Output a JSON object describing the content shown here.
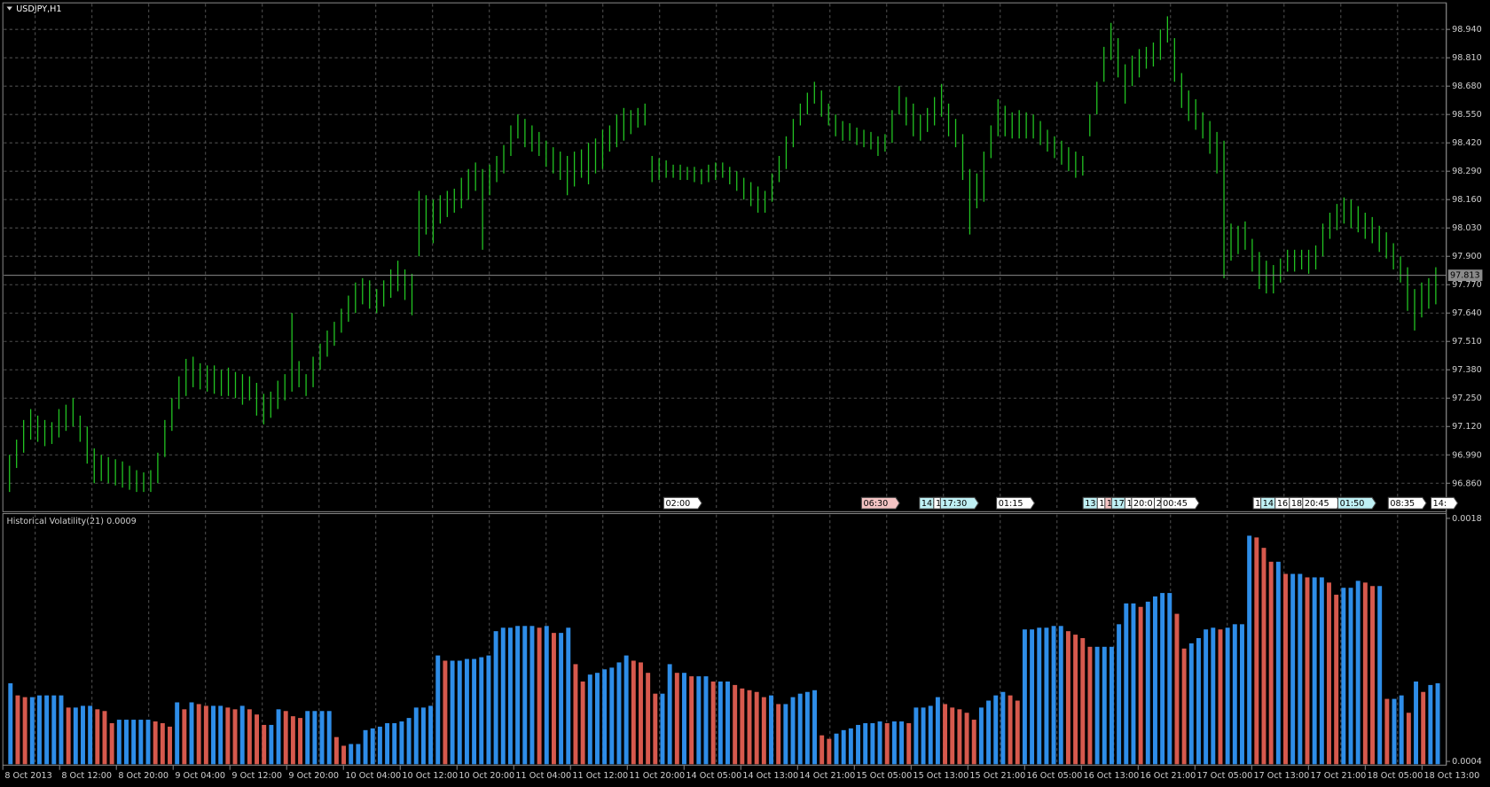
{
  "chart_data": [
    {
      "type": "range_bar",
      "title": "USDJPY,H1",
      "color": "#22c422",
      "grid": true,
      "ylim": [
        96.734,
        99.053
      ],
      "yticks": [
        {
          "value": 96.86,
          "label": "96.860"
        },
        {
          "value": 96.99,
          "label": "96.990"
        },
        {
          "value": 97.12,
          "label": "97.120"
        },
        {
          "value": 97.25,
          "label": "97.250"
        },
        {
          "value": 97.38,
          "label": "97.380"
        },
        {
          "value": 97.51,
          "label": "97.510"
        },
        {
          "value": 97.64,
          "label": "97.640"
        },
        {
          "value": 97.77,
          "label": "97.770"
        },
        {
          "value": 97.9,
          "label": "97.900"
        },
        {
          "value": 98.03,
          "label": "98.030"
        },
        {
          "value": 98.16,
          "label": "98.160"
        },
        {
          "value": 98.29,
          "label": "98.290"
        },
        {
          "value": 98.42,
          "label": "98.420"
        },
        {
          "value": 98.55,
          "label": "98.550"
        },
        {
          "value": 98.68,
          "label": "98.680"
        },
        {
          "value": 98.81,
          "label": "98.810"
        },
        {
          "value": 98.94,
          "label": "98.940"
        }
      ],
      "last_price": {
        "value": 97.813,
        "label": "97.813"
      },
      "low": [
        96.82,
        96.93,
        97.0,
        97.06,
        97.05,
        97.03,
        97.04,
        97.07,
        97.1,
        97.12,
        97.05,
        96.95,
        96.86,
        96.87,
        96.86,
        96.85,
        96.84,
        96.83,
        96.82,
        96.82,
        96.82,
        96.86,
        96.98,
        97.1,
        97.2,
        97.26,
        97.3,
        97.29,
        97.28,
        97.27,
        97.26,
        97.26,
        97.25,
        97.22,
        97.24,
        97.17,
        97.13,
        97.16,
        97.2,
        97.24,
        97.28,
        97.3,
        97.26,
        97.3,
        97.38,
        97.44,
        97.49,
        97.55,
        97.6,
        97.64,
        97.68,
        97.66,
        97.64,
        97.67,
        97.71,
        97.74,
        97.7,
        97.63,
        97.9,
        98.0,
        97.96,
        98.05,
        98.08,
        98.1,
        98.12,
        98.16,
        98.2,
        97.93,
        98.18,
        98.24,
        98.28,
        98.36,
        98.44,
        98.4,
        98.38,
        98.36,
        98.31,
        98.28,
        98.25,
        98.18,
        98.22,
        98.26,
        98.23,
        98.28,
        98.3,
        98.38,
        98.4,
        98.43,
        98.46,
        98.49,
        98.5,
        98.24,
        98.25,
        98.26,
        98.26,
        98.25,
        98.25,
        98.24,
        98.23,
        98.24,
        98.25,
        98.26,
        98.23,
        98.2,
        98.16,
        98.13,
        98.1,
        98.1,
        98.15,
        98.24,
        98.3,
        98.4,
        98.5,
        98.55,
        98.6,
        98.54,
        98.5,
        98.45,
        98.43,
        98.43,
        98.41,
        98.4,
        98.39,
        98.36,
        98.38,
        98.42,
        98.55,
        98.5,
        98.45,
        98.43,
        98.47,
        98.5,
        98.54,
        98.45,
        98.4,
        98.25,
        98.0,
        98.12,
        98.15,
        98.35,
        98.45,
        98.45,
        98.44,
        98.44,
        98.44,
        98.44,
        98.41,
        98.38,
        98.35,
        98.32,
        98.29,
        98.26,
        98.27,
        98.45,
        98.55,
        98.7,
        98.8,
        98.72,
        98.6,
        98.68,
        98.72,
        98.76,
        98.77,
        98.8,
        98.88,
        98.7,
        98.58,
        98.52,
        98.48,
        98.44,
        98.37,
        98.28,
        97.8,
        97.88,
        97.91,
        97.93,
        97.83,
        97.75,
        97.73,
        97.73,
        97.78,
        97.83,
        97.83,
        97.84,
        97.82,
        97.84,
        97.9,
        97.98,
        98.02,
        98.05,
        98.03,
        98.01,
        97.98,
        97.96,
        97.92,
        97.89,
        97.84,
        97.78,
        97.65,
        97.56,
        97.62,
        97.66,
        97.68
      ],
      "high": [
        96.99,
        97.06,
        97.15,
        97.2,
        97.17,
        97.15,
        97.14,
        97.2,
        97.22,
        97.25,
        97.17,
        97.12,
        97.02,
        96.99,
        96.98,
        96.97,
        96.96,
        96.94,
        96.92,
        96.91,
        96.92,
        97.0,
        97.15,
        97.25,
        97.35,
        97.43,
        97.44,
        97.41,
        97.4,
        97.4,
        97.38,
        97.39,
        97.37,
        97.36,
        97.35,
        97.32,
        97.27,
        97.28,
        97.33,
        97.36,
        97.64,
        97.42,
        97.36,
        97.44,
        97.5,
        97.56,
        97.6,
        97.66,
        97.72,
        97.78,
        97.8,
        97.79,
        97.75,
        97.79,
        97.84,
        97.88,
        97.84,
        97.82,
        98.2,
        98.18,
        98.16,
        98.18,
        98.2,
        98.21,
        98.26,
        98.3,
        98.33,
        98.3,
        98.32,
        98.36,
        98.41,
        98.5,
        98.55,
        98.53,
        98.5,
        98.47,
        98.43,
        98.4,
        98.38,
        98.36,
        98.38,
        98.39,
        98.42,
        98.44,
        98.48,
        98.5,
        98.55,
        98.58,
        98.57,
        98.58,
        98.6,
        98.36,
        98.35,
        98.34,
        98.32,
        98.32,
        98.31,
        98.31,
        98.3,
        98.32,
        98.33,
        98.33,
        98.31,
        98.29,
        98.26,
        98.24,
        98.22,
        98.2,
        98.28,
        98.36,
        98.45,
        98.53,
        98.6,
        98.65,
        98.7,
        98.66,
        98.6,
        98.55,
        98.52,
        98.51,
        98.49,
        98.48,
        98.47,
        98.45,
        98.46,
        98.57,
        98.68,
        98.63,
        98.6,
        98.55,
        98.58,
        98.63,
        98.69,
        98.6,
        98.53,
        98.46,
        98.3,
        98.28,
        98.38,
        98.5,
        98.62,
        98.59,
        98.56,
        98.57,
        98.56,
        98.55,
        98.52,
        98.48,
        98.45,
        98.43,
        98.4,
        98.38,
        98.36,
        98.55,
        98.7,
        98.86,
        98.97,
        98.9,
        98.78,
        98.82,
        98.85,
        98.86,
        98.88,
        98.94,
        99.0,
        98.9,
        98.74,
        98.66,
        98.62,
        98.56,
        98.52,
        98.47,
        98.43,
        98.05,
        98.04,
        98.06,
        97.98,
        97.92,
        97.88,
        97.86,
        97.89,
        97.93,
        97.93,
        97.93,
        97.93,
        97.95,
        98.05,
        98.1,
        98.14,
        98.17,
        98.16,
        98.13,
        98.1,
        98.08,
        98.04,
        98.01,
        97.96,
        97.9,
        97.85,
        97.75,
        97.78,
        97.8,
        97.85
      ],
      "events": [
        {
          "label": "02:00",
          "color": "#ffffff"
        },
        {
          "label": "06:30",
          "color": "#f4c4c4"
        },
        {
          "label": "14:",
          "color": "#bff0f4"
        },
        {
          "label": "1",
          "color": "#ffffff"
        },
        {
          "label": "17:30",
          "color": "#bff0f4"
        },
        {
          "label": "01:15",
          "color": "#ffffff"
        },
        {
          "label": "13:",
          "color": "#bff0f4"
        },
        {
          "label": "1",
          "color": "#ffffff"
        },
        {
          "label": "1",
          "color": "#f4c4c4"
        },
        {
          "label": "17:",
          "color": "#bff0f4"
        },
        {
          "label": "1",
          "color": "#ffffff"
        },
        {
          "label": "20:0",
          "color": "#ffffff"
        },
        {
          "label": "2",
          "color": "#ffffff"
        },
        {
          "label": "00:45",
          "color": "#ffffff"
        },
        {
          "label": "1",
          "color": "#ffffff"
        },
        {
          "label": "14:",
          "color": "#bff0f4"
        },
        {
          "label": "16:",
          "color": "#ffffff"
        },
        {
          "label": "18:",
          "color": "#ffffff"
        },
        {
          "label": "20:45",
          "color": "#ffffff"
        },
        {
          "label": "01:50",
          "color": "#bff0f4"
        },
        {
          "label": "08:35",
          "color": "#ffffff"
        },
        {
          "label": "14:",
          "color": "#ffffff"
        }
      ]
    },
    {
      "type": "bar",
      "title": "Historical Volatility(21) 0.0009",
      "up_color": "#2e8de8",
      "down_color": "#d6594d",
      "grid": true,
      "ylim": [
        0.0004,
        0.0018
      ],
      "yticks": [
        0.0018,
        0.0004
      ],
      "xtick_labels": [
        "8 Oct 2013",
        "8 Oct 12:00",
        "8 Oct 20:00",
        "9 Oct 04:00",
        "9 Oct 12:00",
        "9 Oct 20:00",
        "10 Oct 04:00",
        "10 Oct 12:00",
        "10 Oct 20:00",
        "11 Oct 04:00",
        "11 Oct 12:00",
        "11 Oct 20:00",
        "14 Oct 05:00",
        "14 Oct 13:00",
        "14 Oct 21:00",
        "15 Oct 05:00",
        "15 Oct 13:00",
        "15 Oct 21:00",
        "16 Oct 05:00",
        "16 Oct 13:00",
        "16 Oct 21:00",
        "17 Oct 05:00",
        "17 Oct 13:00",
        "17 Oct 21:00",
        "18 Oct 05:00",
        "18 Oct 13:00"
      ],
      "values": [
        0.00085,
        0.00078,
        0.00077,
        0.00077,
        0.00078,
        0.00078,
        0.00078,
        0.00078,
        0.00071,
        0.00071,
        0.00072,
        0.00072,
        0.0007,
        0.00069,
        0.00062,
        0.00064,
        0.00064,
        0.00064,
        0.00064,
        0.00064,
        0.00063,
        0.00062,
        0.0006,
        0.00074,
        0.0007,
        0.00074,
        0.00073,
        0.00072,
        0.00072,
        0.00072,
        0.00071,
        0.0007,
        0.00072,
        0.0007,
        0.00067,
        0.00061,
        0.00061,
        0.0007,
        0.00069,
        0.00066,
        0.00065,
        0.00069,
        0.00069,
        0.00069,
        0.00069,
        0.00054,
        0.00049,
        0.0005,
        0.0005,
        0.00058,
        0.00059,
        0.0006,
        0.00062,
        0.00062,
        0.00063,
        0.00065,
        0.00071,
        0.00071,
        0.00072,
        0.00101,
        0.00098,
        0.00098,
        0.00098,
        0.00099,
        0.00099,
        0.001,
        0.00101,
        0.00115,
        0.00117,
        0.00117,
        0.00118,
        0.00118,
        0.00118,
        0.00117,
        0.00118,
        0.00114,
        0.00114,
        0.00117,
        0.00096,
        0.00086,
        0.0009,
        0.00091,
        0.00093,
        0.00094,
        0.00097,
        0.00101,
        0.00098,
        0.00097,
        0.00091,
        0.00079,
        0.00079,
        0.00096,
        0.00091,
        0.00091,
        0.00089,
        0.00089,
        0.00089,
        0.00086,
        0.00086,
        0.00086,
        0.00084,
        0.00082,
        0.00081,
        0.0008,
        0.00077,
        0.00078,
        0.00073,
        0.00073,
        0.00077,
        0.00079,
        0.0008,
        0.00081,
        0.00055,
        0.00053,
        0.00056,
        0.00058,
        0.00059,
        0.00061,
        0.00062,
        0.00062,
        0.00063,
        0.00062,
        0.00063,
        0.00063,
        0.00062,
        0.00071,
        0.00071,
        0.00072,
        0.00077,
        0.00073,
        0.00071,
        0.0007,
        0.00068,
        0.00064,
        0.00071,
        0.00075,
        0.00078,
        0.0008,
        0.00078,
        0.00075,
        0.00116,
        0.00116,
        0.00117,
        0.00117,
        0.00118,
        0.00118,
        0.00115,
        0.00113,
        0.00111,
        0.00106,
        0.00106,
        0.00106,
        0.00106,
        0.00119,
        0.00131,
        0.00131,
        0.00129,
        0.00132,
        0.00135,
        0.00137,
        0.00137,
        0.00125,
        0.00105,
        0.00108,
        0.00111,
        0.00116,
        0.00117,
        0.00116,
        0.00117,
        0.00119,
        0.00119,
        0.0017,
        0.00169,
        0.00163,
        0.00155,
        0.00155,
        0.00148,
        0.00148,
        0.00148,
        0.00146,
        0.00146,
        0.00146,
        0.00143,
        0.00136,
        0.0014,
        0.0014,
        0.00144,
        0.00143,
        0.00141,
        0.00141,
        0.00076,
        0.00076,
        0.00078,
        0.00068,
        0.00086,
        0.0008,
        0.00084,
        0.00085
      ]
    }
  ]
}
